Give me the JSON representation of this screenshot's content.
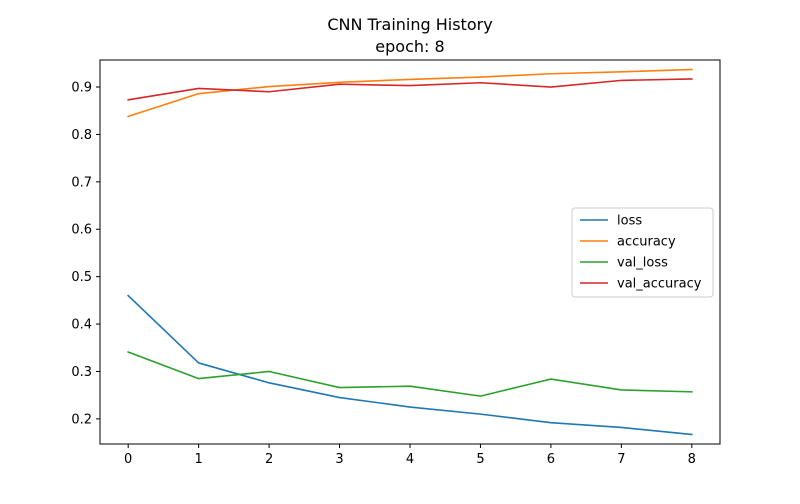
{
  "chart_data": {
    "type": "line",
    "title": "CNN Training History",
    "subtitle": "epoch: 8",
    "xlabel": "",
    "ylabel": "",
    "x": [
      0,
      1,
      2,
      3,
      4,
      5,
      6,
      7,
      8
    ],
    "xticks": [
      "0",
      "1",
      "2",
      "3",
      "4",
      "5",
      "6",
      "7",
      "8"
    ],
    "yticks": [
      "0.2",
      "0.3",
      "0.4",
      "0.5",
      "0.6",
      "0.7",
      "0.8",
      "0.9"
    ],
    "xlim": [
      -0.4,
      8.4
    ],
    "ylim": [
      0.147,
      0.957
    ],
    "grid": false,
    "legend_position": "center-right",
    "series": [
      {
        "name": "loss",
        "color": "#1f77b4",
        "values": [
          0.46,
          0.318,
          0.276,
          0.245,
          0.225,
          0.21,
          0.192,
          0.182,
          0.167
        ]
      },
      {
        "name": "accuracy",
        "color": "#ff7f0e",
        "values": [
          0.838,
          0.886,
          0.901,
          0.91,
          0.916,
          0.921,
          0.928,
          0.932,
          0.937
        ]
      },
      {
        "name": "val_loss",
        "color": "#2ca02c",
        "values": [
          0.341,
          0.285,
          0.3,
          0.266,
          0.269,
          0.248,
          0.284,
          0.261,
          0.257
        ]
      },
      {
        "name": "val_accuracy",
        "color": "#d62728",
        "values": [
          0.873,
          0.897,
          0.89,
          0.906,
          0.903,
          0.909,
          0.9,
          0.914,
          0.917
        ]
      }
    ]
  }
}
